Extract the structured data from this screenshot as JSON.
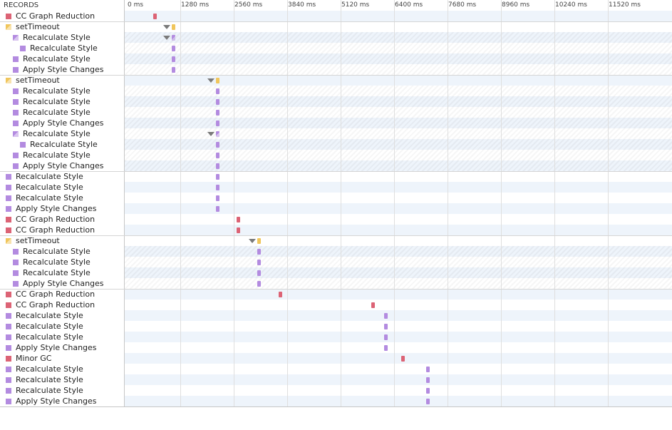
{
  "header": {
    "records_label": "RECORDS"
  },
  "ruler": {
    "ticks": [
      "0 ms",
      "1280 ms",
      "2560 ms",
      "3840 ms",
      "5120 ms",
      "6400 ms",
      "7680 ms",
      "8960 ms",
      "10240 ms",
      "11520 ms"
    ]
  },
  "colors": {
    "scripting": "#f0c65c",
    "rendering": "#b38be0",
    "rendering_split": "#b38be0",
    "gc": "#dc6375",
    "alt_row": "#eef4fb",
    "grid": "#dfdfdf"
  },
  "records": [
    {
      "label": "CC Graph Reduction",
      "category": "gc",
      "depth": 0,
      "bar_ms": 620,
      "expandable": false
    },
    {
      "label": "setTimeout",
      "category": "scripting",
      "depth": 0,
      "bar_ms": 1060,
      "expandable": true
    },
    {
      "label": "Recalculate Style",
      "category": "rendering_split",
      "depth": 1,
      "bar_ms": 1060,
      "expandable": true
    },
    {
      "label": "Recalculate Style",
      "category": "rendering",
      "depth": 2,
      "bar_ms": 1060,
      "expandable": false
    },
    {
      "label": "Recalculate Style",
      "category": "rendering",
      "depth": 1,
      "bar_ms": 1060,
      "expandable": false
    },
    {
      "label": "Apply Style Changes",
      "category": "rendering",
      "depth": 1,
      "bar_ms": 1060,
      "expandable": false
    },
    {
      "label": "setTimeout",
      "category": "scripting",
      "depth": 0,
      "bar_ms": 2110,
      "expandable": true
    },
    {
      "label": "Recalculate Style",
      "category": "rendering",
      "depth": 1,
      "bar_ms": 2110,
      "expandable": false
    },
    {
      "label": "Recalculate Style",
      "category": "rendering",
      "depth": 1,
      "bar_ms": 2110,
      "expandable": false
    },
    {
      "label": "Recalculate Style",
      "category": "rendering",
      "depth": 1,
      "bar_ms": 2110,
      "expandable": false
    },
    {
      "label": "Apply Style Changes",
      "category": "rendering",
      "depth": 1,
      "bar_ms": 2110,
      "expandable": false
    },
    {
      "label": "Recalculate Style",
      "category": "rendering_split",
      "depth": 1,
      "bar_ms": 2110,
      "expandable": true
    },
    {
      "label": "Recalculate Style",
      "category": "rendering",
      "depth": 2,
      "bar_ms": 2110,
      "expandable": false
    },
    {
      "label": "Recalculate Style",
      "category": "rendering",
      "depth": 1,
      "bar_ms": 2110,
      "expandable": false
    },
    {
      "label": "Apply Style Changes",
      "category": "rendering",
      "depth": 1,
      "bar_ms": 2110,
      "expandable": false
    },
    {
      "label": "Recalculate Style",
      "category": "rendering",
      "depth": 0,
      "bar_ms": 2110,
      "expandable": false
    },
    {
      "label": "Recalculate Style",
      "category": "rendering",
      "depth": 0,
      "bar_ms": 2110,
      "expandable": false
    },
    {
      "label": "Recalculate Style",
      "category": "rendering",
      "depth": 0,
      "bar_ms": 2110,
      "expandable": false
    },
    {
      "label": "Apply Style Changes",
      "category": "rendering",
      "depth": 0,
      "bar_ms": 2110,
      "expandable": false
    },
    {
      "label": "CC Graph Reduction",
      "category": "gc",
      "depth": 0,
      "bar_ms": 2610,
      "expandable": false
    },
    {
      "label": "CC Graph Reduction",
      "category": "gc",
      "depth": 0,
      "bar_ms": 2610,
      "expandable": false
    },
    {
      "label": "setTimeout",
      "category": "scripting",
      "depth": 0,
      "bar_ms": 3110,
      "expandable": true
    },
    {
      "label": "Recalculate Style",
      "category": "rendering",
      "depth": 1,
      "bar_ms": 3110,
      "expandable": false
    },
    {
      "label": "Recalculate Style",
      "category": "rendering",
      "depth": 1,
      "bar_ms": 3110,
      "expandable": false
    },
    {
      "label": "Recalculate Style",
      "category": "rendering",
      "depth": 1,
      "bar_ms": 3110,
      "expandable": false
    },
    {
      "label": "Apply Style Changes",
      "category": "rendering",
      "depth": 1,
      "bar_ms": 3110,
      "expandable": false
    },
    {
      "label": "CC Graph Reduction",
      "category": "gc",
      "depth": 0,
      "bar_ms": 3610,
      "expandable": false
    },
    {
      "label": "CC Graph Reduction",
      "category": "gc",
      "depth": 0,
      "bar_ms": 5840,
      "expandable": false
    },
    {
      "label": "Recalculate Style",
      "category": "rendering",
      "depth": 0,
      "bar_ms": 6140,
      "expandable": false
    },
    {
      "label": "Recalculate Style",
      "category": "rendering",
      "depth": 0,
      "bar_ms": 6140,
      "expandable": false
    },
    {
      "label": "Recalculate Style",
      "category": "rendering",
      "depth": 0,
      "bar_ms": 6140,
      "expandable": false
    },
    {
      "label": "Apply Style Changes",
      "category": "rendering",
      "depth": 0,
      "bar_ms": 6140,
      "expandable": false
    },
    {
      "label": "Minor GC",
      "category": "gc",
      "depth": 0,
      "bar_ms": 6550,
      "expandable": false
    },
    {
      "label": "Recalculate Style",
      "category": "rendering",
      "depth": 0,
      "bar_ms": 7150,
      "expandable": false
    },
    {
      "label": "Recalculate Style",
      "category": "rendering",
      "depth": 0,
      "bar_ms": 7150,
      "expandable": false
    },
    {
      "label": "Recalculate Style",
      "category": "rendering",
      "depth": 0,
      "bar_ms": 7150,
      "expandable": false
    },
    {
      "label": "Apply Style Changes",
      "category": "rendering",
      "depth": 0,
      "bar_ms": 7150,
      "expandable": false
    }
  ]
}
